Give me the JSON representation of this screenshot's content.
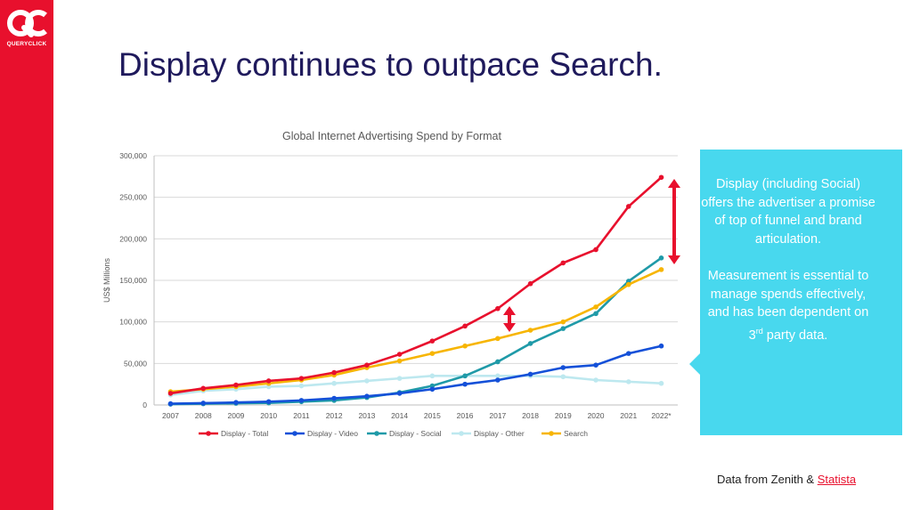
{
  "logo": {
    "mark": "QC",
    "text": "QUERYCLICK"
  },
  "slide_title": "Display continues to outpace Search.",
  "callout": {
    "paragraph1": "Display (including Social) offers the advertiser a promise of top of funnel and brand articulation.",
    "paragraph2_main": "Measurement is essential to manage spends effectively, and has been dependent on 3",
    "paragraph2_sup": "rd",
    "paragraph2_end": " party data."
  },
  "source": {
    "prefix": "Data from Zenith & ",
    "link": "Statista"
  },
  "colors": {
    "brand_red": "#e8102d",
    "title_navy": "#1f1a5c",
    "callout_cyan": "#48d8ee"
  },
  "chart_data": {
    "type": "line",
    "title": "Global Internet Advertising Spend by Format",
    "ylabel": "US$ Millions",
    "xlabel": "",
    "x": [
      "2007",
      "2008",
      "2009",
      "2010",
      "2011",
      "2012",
      "2013",
      "2014",
      "2015",
      "2016",
      "2017",
      "2018",
      "2019",
      "2020",
      "2021",
      "2022*"
    ],
    "ylim": [
      0,
      300000
    ],
    "yticks": [
      0,
      50000,
      100000,
      150000,
      200000,
      250000,
      300000
    ],
    "ytick_labels": [
      "0",
      "50,000",
      "100,000",
      "150,000",
      "200,000",
      "250,000",
      "300,000"
    ],
    "grid": "horizontal",
    "legend_position": "bottom",
    "series": [
      {
        "name": "Display - Total",
        "color": "#e8102d",
        "values": [
          14000,
          20000,
          24000,
          29000,
          32000,
          39000,
          48000,
          61000,
          77000,
          95000,
          116000,
          146000,
          171000,
          187000,
          239000,
          274000
        ]
      },
      {
        "name": "Display - Video",
        "color": "#1450d8",
        "values": [
          1500,
          2200,
          3000,
          4000,
          5500,
          8000,
          10500,
          14000,
          19000,
          25000,
          30000,
          37000,
          45000,
          48000,
          62000,
          71000
        ]
      },
      {
        "name": "Display - Social",
        "color": "#1f9aa8",
        "values": [
          1000,
          1500,
          2000,
          2500,
          4000,
          5500,
          9000,
          15000,
          23000,
          35000,
          52000,
          74000,
          92000,
          110000,
          149000,
          177000
        ]
      },
      {
        "name": "Display - Other",
        "color": "#bde8ef",
        "values": [
          12000,
          17000,
          19000,
          22000,
          23000,
          26000,
          29000,
          32000,
          35000,
          35000,
          35000,
          35000,
          34000,
          30000,
          28000,
          26000
        ]
      },
      {
        "name": "Search",
        "color": "#f7b500",
        "values": [
          16000,
          19000,
          22000,
          26000,
          30000,
          36000,
          45000,
          53000,
          62000,
          71000,
          80000,
          90000,
          100000,
          118000,
          145000,
          163000
        ]
      }
    ]
  }
}
